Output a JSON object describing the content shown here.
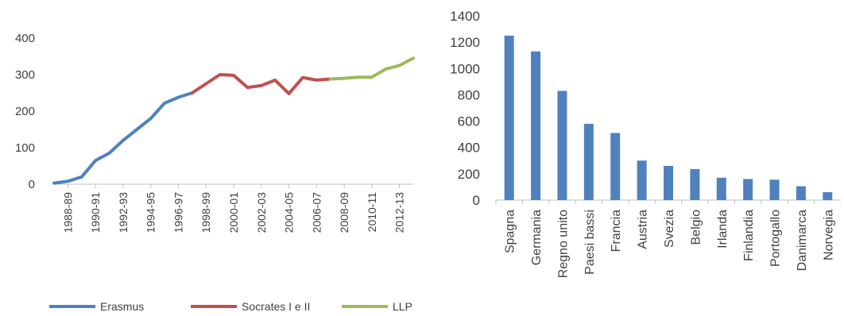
{
  "chart_data": [
    {
      "type": "line",
      "title": "",
      "xlabel": "",
      "ylabel": "",
      "ylim": [
        0,
        400
      ],
      "yticks": [
        0,
        100,
        200,
        300,
        400
      ],
      "grid": false,
      "legend_position": "bottom",
      "x_labels_shown": [
        "1988-89",
        "1990-91",
        "1992-93",
        "1994-95",
        "1996-97",
        "1998-99",
        "2000-01",
        "2002-03",
        "2004-05",
        "2006-07",
        "2008-09",
        "2010-11",
        "2012-13"
      ],
      "series": [
        {
          "name": "Erasmus",
          "color": "#4f81bd",
          "x": [
            "1987-88",
            "1988-89",
            "1989-90",
            "1990-91",
            "1991-92",
            "1992-93",
            "1993-94",
            "1994-95",
            "1995-96",
            "1996-97",
            "1997-98"
          ],
          "values": [
            3,
            8,
            20,
            65,
            85,
            120,
            150,
            180,
            222,
            238,
            250
          ]
        },
        {
          "name": "Socrates I e II",
          "color": "#c0504d",
          "x": [
            "1997-98",
            "1998-99",
            "1999-00",
            "2000-01",
            "2001-02",
            "2002-03",
            "2003-04",
            "2004-05",
            "2005-06",
            "2006-07",
            "2007-08"
          ],
          "values": [
            250,
            275,
            300,
            298,
            265,
            270,
            285,
            248,
            292,
            285,
            288
          ]
        },
        {
          "name": "LLP",
          "color": "#9bbb59",
          "x": [
            "2007-08",
            "2008-09",
            "2009-10",
            "2010-11",
            "2011-12",
            "2012-13",
            "2013-14"
          ],
          "values": [
            288,
            290,
            293,
            293,
            315,
            325,
            345
          ]
        }
      ]
    },
    {
      "type": "bar",
      "title": "",
      "xlabel": "",
      "ylabel": "",
      "ylim": [
        0,
        1400
      ],
      "yticks": [
        0,
        200,
        400,
        600,
        800,
        1000,
        1200,
        1400
      ],
      "grid": false,
      "color": "#4f81bd",
      "categories": [
        "Spagna",
        "Germania",
        "Regno unito",
        "Paesi bassi",
        "Francia",
        "Austria",
        "Svezia",
        "Belgio",
        "Irlanda",
        "Finlandia",
        "Portogallo",
        "Danimarca",
        "Norvegia"
      ],
      "values": [
        1250,
        1130,
        830,
        580,
        510,
        300,
        260,
        235,
        170,
        160,
        155,
        105,
        60
      ]
    }
  ]
}
